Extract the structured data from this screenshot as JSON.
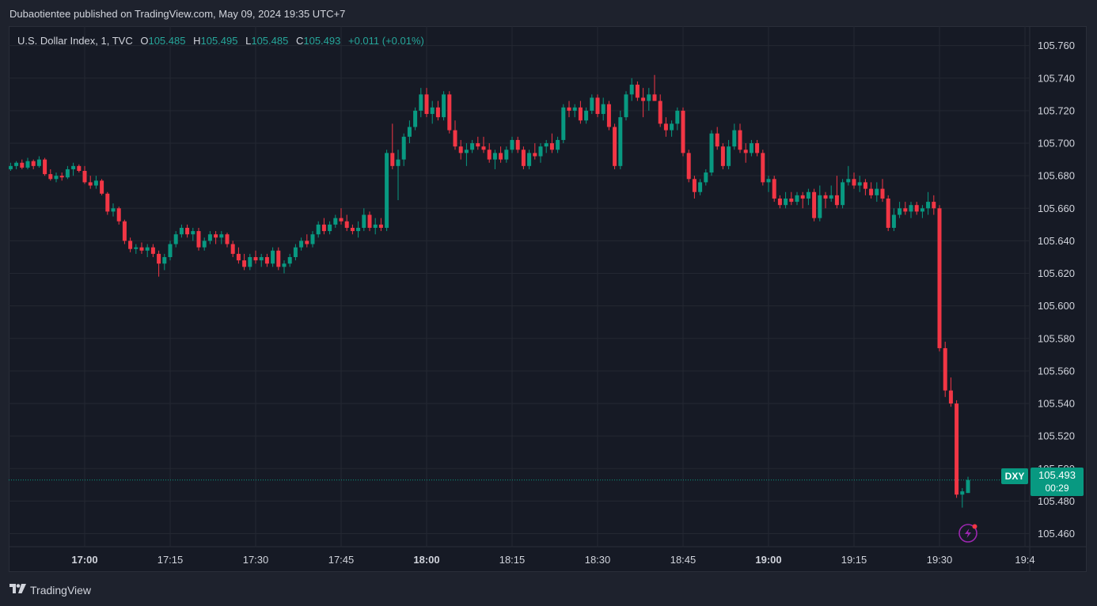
{
  "header": {
    "published_text": "Dubaotientee published on TradingView.com, May 09, 2024 19:35 UTC+7"
  },
  "legend": {
    "symbol": "U.S. Dollar Index, 1, TVC",
    "open_label": "O",
    "open": "105.485",
    "high_label": "H",
    "high": "105.495",
    "low_label": "L",
    "low": "105.485",
    "close_label": "C",
    "close": "105.493",
    "change": "+0.011 (+0.01%)"
  },
  "price_tag": {
    "symbol": "DXY",
    "price": "105.493",
    "countdown": "00:29"
  },
  "footer": {
    "brand": "TradingView"
  },
  "colors": {
    "up": "#089981",
    "down": "#f23645",
    "grid": "#242832",
    "text": "#d1d4dc",
    "alert": "#9c27b0"
  },
  "chart_data": {
    "type": "candlestick",
    "interval_minutes": 1,
    "y_axis_ticks": [
      "105.760",
      "105.740",
      "105.720",
      "105.700",
      "105.680",
      "105.660",
      "105.640",
      "105.620",
      "105.600",
      "105.580",
      "105.560",
      "105.540",
      "105.520",
      "105.500",
      "105.480",
      "105.460"
    ],
    "ylim": [
      105.452,
      105.772
    ],
    "x_axis_ticks": [
      {
        "label": "17:00",
        "minute": 0,
        "bold": true
      },
      {
        "label": "17:15",
        "minute": 15,
        "bold": false
      },
      {
        "label": "17:30",
        "minute": 30,
        "bold": false
      },
      {
        "label": "17:45",
        "minute": 45,
        "bold": false
      },
      {
        "label": "18:00",
        "minute": 60,
        "bold": true
      },
      {
        "label": "18:15",
        "minute": 75,
        "bold": false
      },
      {
        "label": "18:30",
        "minute": 90,
        "bold": false
      },
      {
        "label": "18:45",
        "minute": 105,
        "bold": false
      },
      {
        "label": "19:00",
        "minute": 120,
        "bold": true
      },
      {
        "label": "19:15",
        "minute": 135,
        "bold": false
      },
      {
        "label": "19:30",
        "minute": 150,
        "bold": false
      },
      {
        "label": "19:4",
        "minute": 165,
        "bold": false
      }
    ],
    "last_price": 105.493,
    "candles": [
      [
        -13,
        105.684,
        105.688,
        105.683,
        105.686
      ],
      [
        -12,
        105.686,
        105.689,
        105.684,
        105.688
      ],
      [
        -11,
        105.688,
        105.69,
        105.684,
        105.685
      ],
      [
        -10,
        105.685,
        105.691,
        105.684,
        105.689
      ],
      [
        -9,
        105.689,
        105.69,
        105.684,
        105.686
      ],
      [
        -8,
        105.686,
        105.692,
        105.685,
        105.69
      ],
      [
        -7,
        105.69,
        105.691,
        105.68,
        105.681
      ],
      [
        -6,
        105.681,
        105.684,
        105.677,
        105.678
      ],
      [
        -5,
        105.678,
        105.682,
        105.676,
        105.68
      ],
      [
        -4,
        105.68,
        105.682,
        105.677,
        105.679
      ],
      [
        -3,
        105.679,
        105.686,
        105.678,
        105.684
      ],
      [
        -2,
        105.684,
        105.688,
        105.68,
        105.686
      ],
      [
        -1,
        105.686,
        105.687,
        105.682,
        105.683
      ],
      [
        0,
        105.683,
        105.686,
        105.675,
        105.676
      ],
      [
        1,
        105.676,
        105.68,
        105.672,
        105.674
      ],
      [
        2,
        105.674,
        105.68,
        105.672,
        105.677
      ],
      [
        3,
        105.677,
        105.678,
        105.668,
        105.669
      ],
      [
        4,
        105.669,
        105.67,
        105.656,
        105.658
      ],
      [
        5,
        105.658,
        105.663,
        105.655,
        105.66
      ],
      [
        6,
        105.66,
        105.661,
        105.65,
        105.652
      ],
      [
        7,
        105.652,
        105.653,
        105.638,
        105.64
      ],
      [
        8,
        105.64,
        105.642,
        105.633,
        105.635
      ],
      [
        9,
        105.635,
        105.638,
        105.632,
        105.636
      ],
      [
        10,
        105.636,
        105.639,
        105.632,
        105.634
      ],
      [
        11,
        105.634,
        105.638,
        105.63,
        105.636
      ],
      [
        12,
        105.636,
        105.638,
        105.63,
        105.632
      ],
      [
        13,
        105.632,
        105.634,
        105.618,
        105.626
      ],
      [
        14,
        105.626,
        105.632,
        105.622,
        105.63
      ],
      [
        15,
        105.63,
        105.64,
        105.628,
        105.638
      ],
      [
        16,
        105.638,
        105.646,
        105.636,
        105.644
      ],
      [
        17,
        105.644,
        105.65,
        105.642,
        105.648
      ],
      [
        18,
        105.648,
        105.65,
        105.642,
        105.644
      ],
      [
        19,
        105.644,
        105.648,
        105.64,
        105.646
      ],
      [
        20,
        105.646,
        105.648,
        105.634,
        105.636
      ],
      [
        21,
        105.636,
        105.642,
        105.634,
        105.64
      ],
      [
        22,
        105.64,
        105.646,
        105.638,
        105.644
      ],
      [
        23,
        105.644,
        105.646,
        105.638,
        105.642
      ],
      [
        24,
        105.642,
        105.646,
        105.638,
        105.644
      ],
      [
        25,
        105.644,
        105.645,
        105.636,
        105.638
      ],
      [
        26,
        105.638,
        105.64,
        105.63,
        105.632
      ],
      [
        27,
        105.632,
        105.636,
        105.626,
        105.628
      ],
      [
        28,
        105.628,
        105.632,
        105.622,
        105.624
      ],
      [
        29,
        105.624,
        105.632,
        105.622,
        105.63
      ],
      [
        30,
        105.63,
        105.634,
        105.626,
        105.628
      ],
      [
        31,
        105.628,
        105.632,
        105.624,
        105.63
      ],
      [
        32,
        105.63,
        105.632,
        105.624,
        105.626
      ],
      [
        33,
        105.626,
        105.636,
        105.624,
        105.634
      ],
      [
        34,
        105.634,
        105.636,
        105.622,
        105.624
      ],
      [
        35,
        105.624,
        105.628,
        105.62,
        105.626
      ],
      [
        36,
        105.626,
        105.632,
        105.624,
        105.63
      ],
      [
        37,
        105.63,
        105.638,
        105.628,
        105.636
      ],
      [
        38,
        105.636,
        105.642,
        105.634,
        105.64
      ],
      [
        39,
        105.64,
        105.644,
        105.636,
        105.638
      ],
      [
        40,
        105.638,
        105.646,
        105.636,
        105.644
      ],
      [
        41,
        105.644,
        105.652,
        105.642,
        105.65
      ],
      [
        42,
        105.65,
        105.654,
        105.644,
        105.646
      ],
      [
        43,
        105.646,
        105.652,
        105.644,
        105.65
      ],
      [
        44,
        105.65,
        105.656,
        105.648,
        105.654
      ],
      [
        45,
        105.654,
        105.66,
        105.65,
        105.652
      ],
      [
        46,
        105.652,
        105.656,
        105.646,
        105.648
      ],
      [
        47,
        105.648,
        105.65,
        105.644,
        105.646
      ],
      [
        48,
        105.646,
        105.652,
        105.642,
        105.648
      ],
      [
        49,
        105.648,
        105.66,
        105.646,
        105.656
      ],
      [
        50,
        105.656,
        105.658,
        105.646,
        105.648
      ],
      [
        51,
        105.648,
        105.654,
        105.644,
        105.65
      ],
      [
        52,
        105.65,
        105.654,
        105.646,
        105.648
      ],
      [
        53,
        105.648,
        105.696,
        105.646,
        105.694
      ],
      [
        54,
        105.694,
        105.712,
        105.684,
        105.686
      ],
      [
        55,
        105.686,
        105.696,
        105.665,
        105.69
      ],
      [
        56,
        105.69,
        105.706,
        105.686,
        105.704
      ],
      [
        57,
        105.704,
        105.714,
        105.7,
        105.71
      ],
      [
        58,
        105.71,
        105.722,
        105.708,
        105.72
      ],
      [
        59,
        105.72,
        105.734,
        105.716,
        105.73
      ],
      [
        60,
        105.73,
        105.734,
        105.716,
        105.718
      ],
      [
        61,
        105.718,
        105.726,
        105.712,
        105.722
      ],
      [
        62,
        105.722,
        105.726,
        105.714,
        105.716
      ],
      [
        63,
        105.716,
        105.732,
        105.714,
        105.73
      ],
      [
        64,
        105.73,
        105.732,
        105.706,
        105.708
      ],
      [
        65,
        105.708,
        105.714,
        105.696,
        105.698
      ],
      [
        66,
        105.698,
        105.702,
        105.69,
        105.694
      ],
      [
        67,
        105.694,
        105.7,
        105.686,
        105.696
      ],
      [
        68,
        105.696,
        105.702,
        105.694,
        105.7
      ],
      [
        69,
        105.7,
        105.704,
        105.696,
        105.698
      ],
      [
        70,
        105.698,
        105.704,
        105.694,
        105.696
      ],
      [
        71,
        105.696,
        105.7,
        105.688,
        105.69
      ],
      [
        72,
        105.69,
        105.696,
        105.684,
        105.694
      ],
      [
        73,
        105.694,
        105.698,
        105.688,
        105.69
      ],
      [
        74,
        105.69,
        105.698,
        105.688,
        105.696
      ],
      [
        75,
        105.696,
        105.704,
        105.694,
        105.702
      ],
      [
        76,
        105.702,
        105.704,
        105.694,
        105.696
      ],
      [
        77,
        105.696,
        105.698,
        105.684,
        105.686
      ],
      [
        78,
        105.686,
        105.696,
        105.684,
        105.694
      ],
      [
        79,
        105.694,
        105.7,
        105.69,
        105.692
      ],
      [
        80,
        105.692,
        105.7,
        105.688,
        105.698
      ],
      [
        81,
        105.698,
        105.702,
        105.694,
        105.7
      ],
      [
        82,
        105.7,
        105.706,
        105.694,
        105.696
      ],
      [
        83,
        105.696,
        105.704,
        105.694,
        105.702
      ],
      [
        84,
        105.702,
        105.724,
        105.7,
        105.722
      ],
      [
        85,
        105.722,
        105.726,
        105.716,
        105.72
      ],
      [
        86,
        105.72,
        105.724,
        105.716,
        105.722
      ],
      [
        87,
        105.722,
        105.726,
        105.712,
        105.714
      ],
      [
        88,
        105.714,
        105.722,
        105.712,
        105.72
      ],
      [
        89,
        105.72,
        105.73,
        105.718,
        105.728
      ],
      [
        90,
        105.728,
        105.73,
        105.716,
        105.718
      ],
      [
        91,
        105.718,
        105.728,
        105.714,
        105.724
      ],
      [
        92,
        105.724,
        105.726,
        105.708,
        105.71
      ],
      [
        93,
        105.71,
        105.712,
        105.684,
        105.686
      ],
      [
        94,
        105.686,
        105.72,
        105.684,
        105.716
      ],
      [
        95,
        105.716,
        105.732,
        105.714,
        105.73
      ],
      [
        96,
        105.73,
        105.74,
        105.726,
        105.736
      ],
      [
        97,
        105.736,
        105.738,
        105.726,
        105.728
      ],
      [
        98,
        105.728,
        105.734,
        105.716,
        105.726
      ],
      [
        99,
        105.726,
        105.734,
        105.72,
        105.73
      ],
      [
        100,
        105.73,
        105.742,
        105.726,
        105.726
      ],
      [
        101,
        105.726,
        105.73,
        105.71,
        105.712
      ],
      [
        102,
        105.712,
        105.716,
        105.704,
        105.708
      ],
      [
        103,
        105.708,
        105.714,
        105.704,
        105.712
      ],
      [
        104,
        105.712,
        105.722,
        105.708,
        105.72
      ],
      [
        105,
        105.72,
        105.722,
        105.692,
        105.694
      ],
      [
        106,
        105.694,
        105.696,
        105.676,
        105.678
      ],
      [
        107,
        105.678,
        105.68,
        105.666,
        105.67
      ],
      [
        108,
        105.67,
        105.678,
        105.668,
        105.676
      ],
      [
        109,
        105.676,
        105.684,
        105.674,
        105.682
      ],
      [
        110,
        105.682,
        105.708,
        105.68,
        105.706
      ],
      [
        111,
        105.706,
        105.71,
        105.696,
        105.698
      ],
      [
        112,
        105.698,
        105.7,
        105.684,
        105.686
      ],
      [
        113,
        105.686,
        105.702,
        105.684,
        105.698
      ],
      [
        114,
        105.698,
        105.712,
        105.696,
        105.708
      ],
      [
        115,
        105.708,
        105.712,
        105.694,
        105.696
      ],
      [
        116,
        105.696,
        105.7,
        105.688,
        105.694
      ],
      [
        117,
        105.694,
        105.702,
        105.692,
        105.7
      ],
      [
        118,
        105.7,
        105.702,
        105.692,
        105.694
      ],
      [
        119,
        105.694,
        105.696,
        105.674,
        105.676
      ],
      [
        120,
        105.676,
        105.68,
        105.67,
        105.678
      ],
      [
        121,
        105.678,
        105.68,
        105.664,
        105.666
      ],
      [
        122,
        105.666,
        105.668,
        105.66,
        105.662
      ],
      [
        123,
        105.662,
        105.67,
        105.66,
        105.666
      ],
      [
        124,
        105.666,
        105.67,
        105.662,
        105.664
      ],
      [
        125,
        105.664,
        105.67,
        105.662,
        105.668
      ],
      [
        126,
        105.668,
        105.67,
        105.66,
        105.666
      ],
      [
        127,
        105.666,
        105.672,
        105.662,
        105.67
      ],
      [
        128,
        105.67,
        105.672,
        105.652,
        105.654
      ],
      [
        129,
        105.654,
        105.674,
        105.652,
        105.668
      ],
      [
        130,
        105.668,
        105.67,
        105.66,
        105.666
      ],
      [
        131,
        105.666,
        105.674,
        105.664,
        105.668
      ],
      [
        132,
        105.668,
        105.68,
        105.66,
        105.662
      ],
      [
        133,
        105.662,
        105.678,
        105.66,
        105.676
      ],
      [
        134,
        105.676,
        105.686,
        105.674,
        105.678
      ],
      [
        135,
        105.678,
        105.682,
        105.672,
        105.674
      ],
      [
        136,
        105.674,
        105.68,
        105.67,
        105.676
      ],
      [
        137,
        105.676,
        105.678,
        105.668,
        105.672
      ],
      [
        138,
        105.672,
        105.676,
        105.666,
        105.668
      ],
      [
        139,
        105.668,
        105.676,
        105.664,
        105.672
      ],
      [
        140,
        105.672,
        105.678,
        105.664,
        105.666
      ],
      [
        141,
        105.666,
        105.668,
        105.646,
        105.648
      ],
      [
        142,
        105.648,
        105.66,
        105.646,
        105.656
      ],
      [
        143,
        105.656,
        105.664,
        105.654,
        105.66
      ],
      [
        144,
        105.66,
        105.664,
        105.656,
        105.658
      ],
      [
        145,
        105.658,
        105.664,
        105.654,
        105.662
      ],
      [
        146,
        105.662,
        105.664,
        105.656,
        105.658
      ],
      [
        147,
        105.658,
        105.662,
        105.654,
        105.66
      ],
      [
        148,
        105.66,
        105.67,
        105.656,
        105.664
      ],
      [
        149,
        105.664,
        105.668,
        105.656,
        105.66
      ],
      [
        150,
        105.66,
        105.662,
        105.572,
        105.574
      ],
      [
        151,
        105.574,
        105.578,
        105.544,
        105.548
      ],
      [
        152,
        105.548,
        105.556,
        105.538,
        105.54
      ],
      [
        153,
        105.54,
        105.542,
        105.482,
        105.484
      ],
      [
        154,
        105.484,
        105.488,
        105.476,
        105.486
      ],
      [
        155,
        105.485,
        105.495,
        105.485,
        105.493
      ]
    ]
  }
}
